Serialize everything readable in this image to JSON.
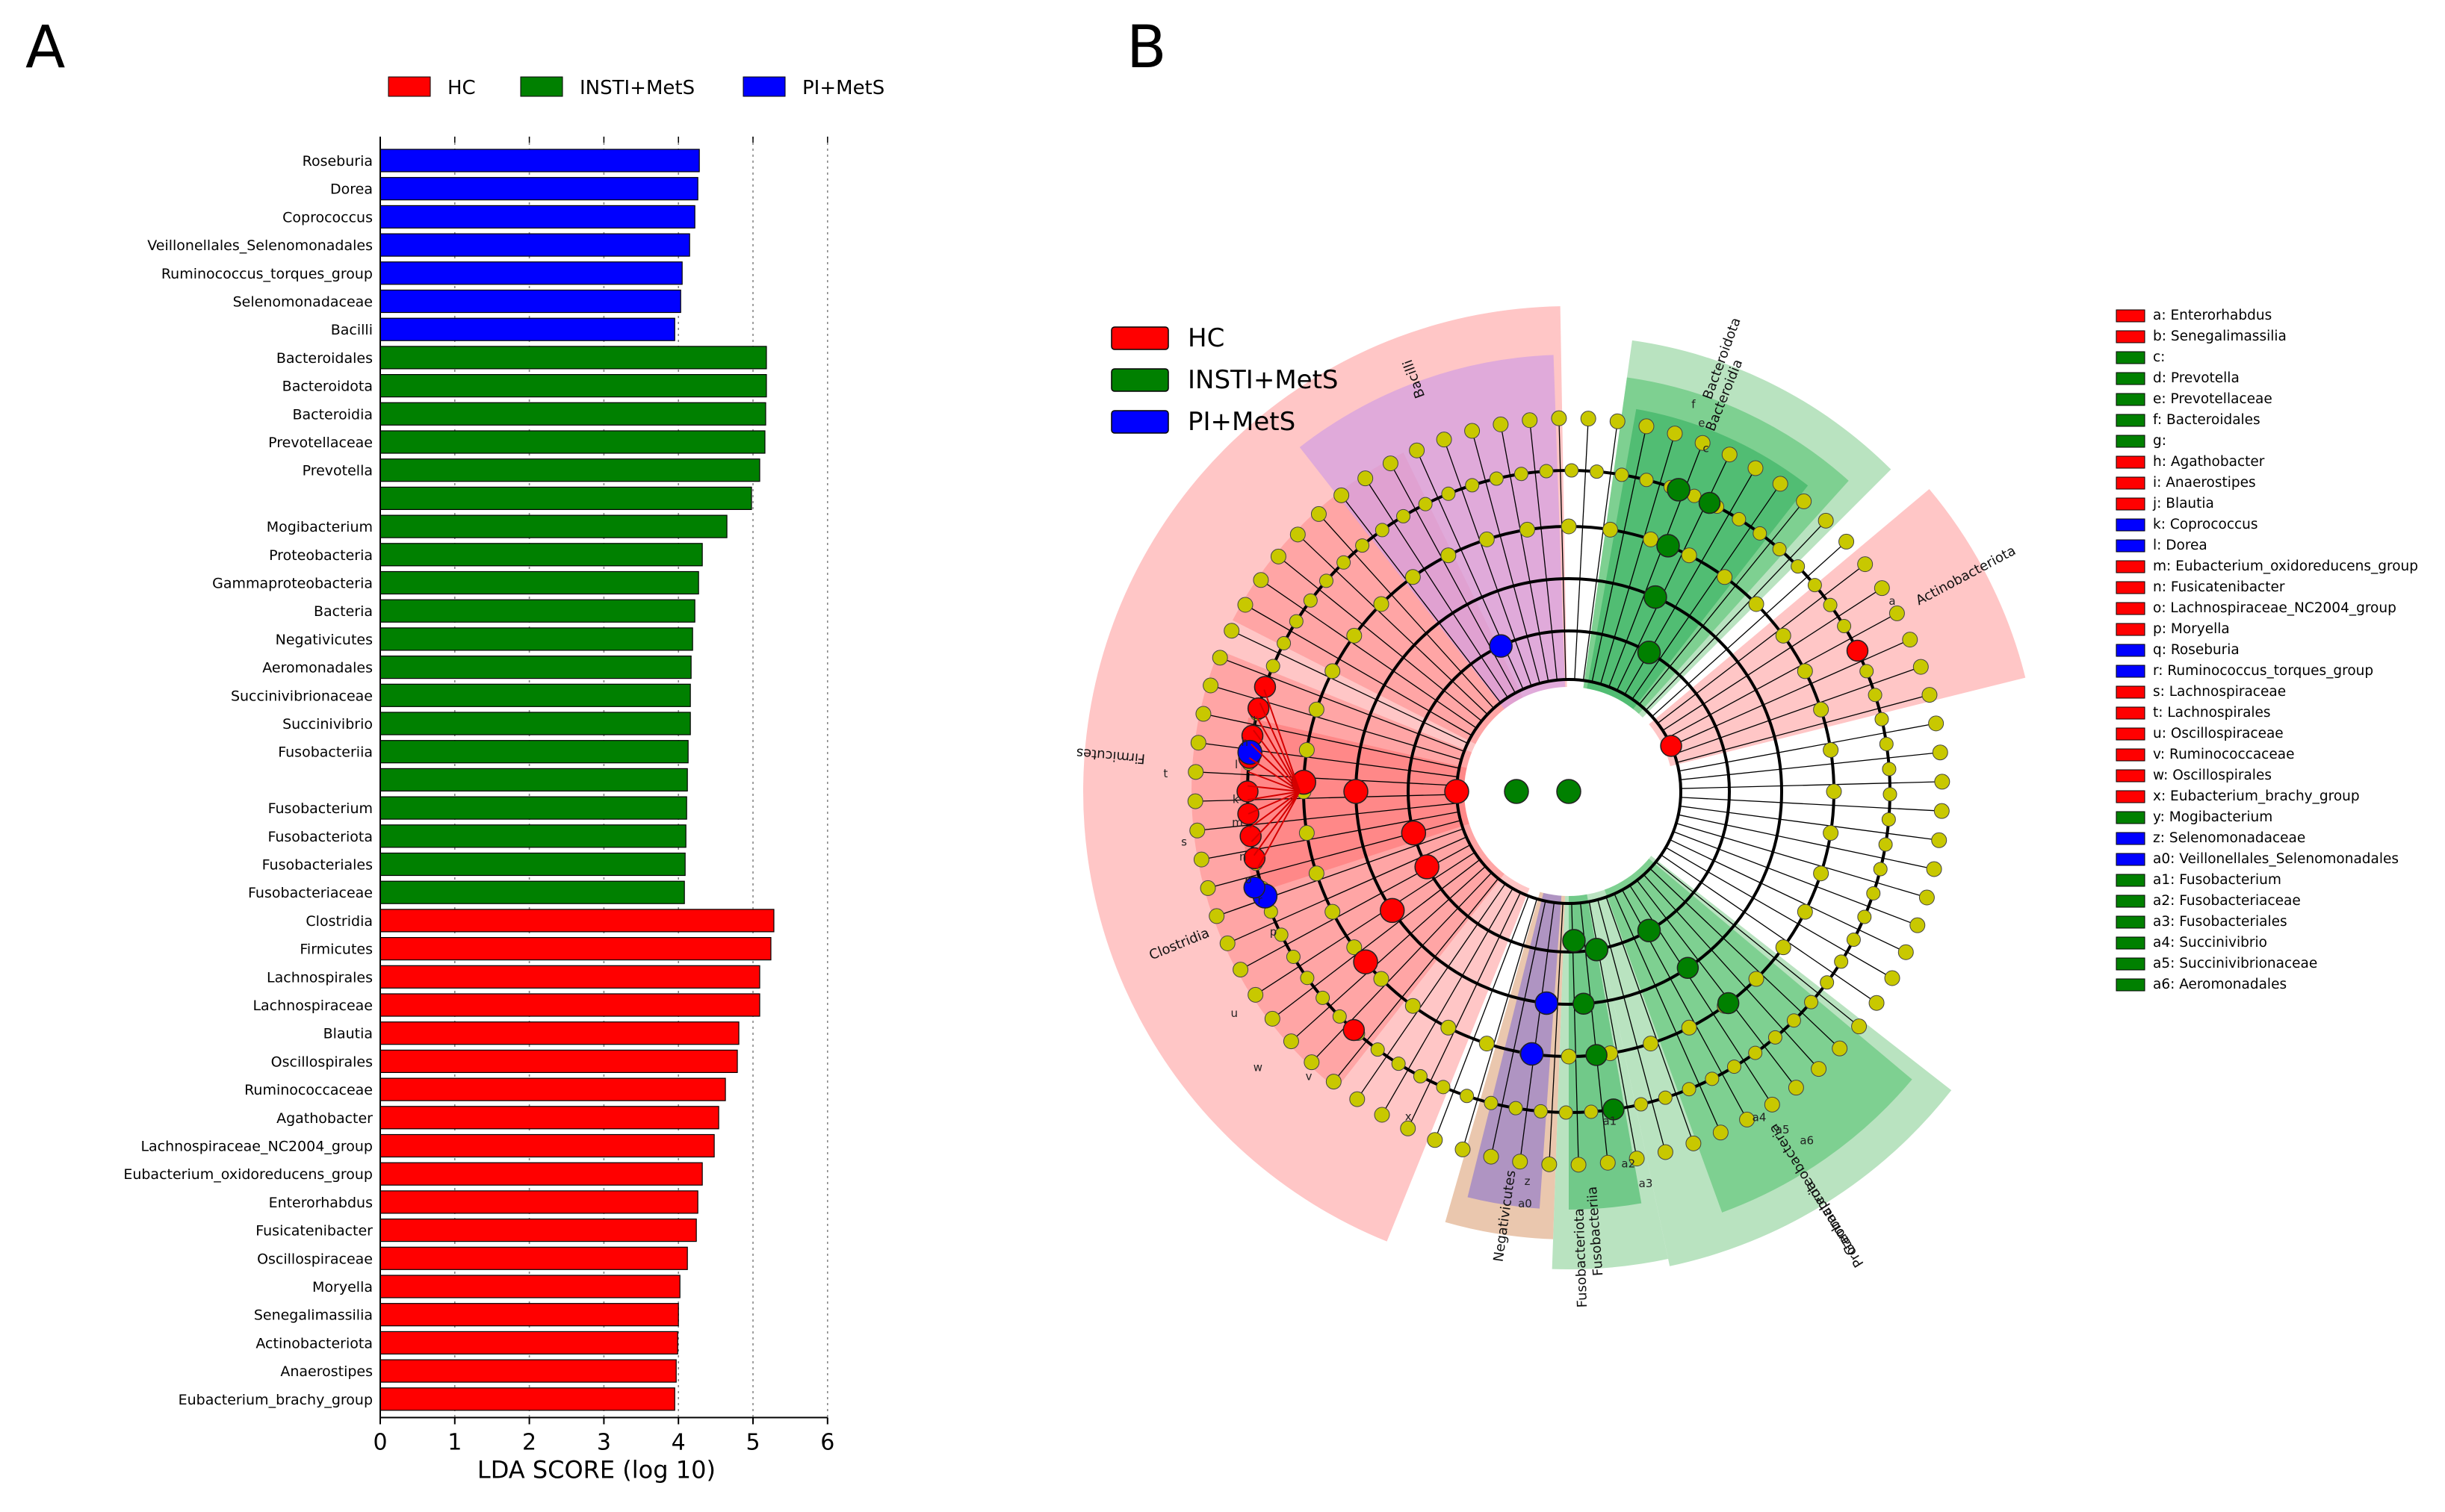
{
  "panels": [
    {
      "label": "A"
    },
    {
      "label": "B"
    }
  ],
  "colors": {
    "HC": "#ff0000",
    "INSTI+MetS": "#008000",
    "PI+MetS": "#0000ff",
    "node_neutral": "#c8c800"
  },
  "chart_data": [
    {
      "type": "bar",
      "orientation": "horizontal",
      "title": "",
      "xlabel": "LDA SCORE (log 10)",
      "ylabel": "",
      "xlim": [
        0,
        6
      ],
      "xticks": [
        0,
        1,
        2,
        3,
        4,
        5,
        6
      ],
      "grid": "vertical dotted",
      "legend": {
        "position": "top",
        "entries": [
          "HC",
          "INSTI+MetS",
          "PI+MetS"
        ]
      },
      "bars": [
        {
          "name": "Roseburia",
          "value": 4.28,
          "group": "PI+MetS"
        },
        {
          "name": "Dorea",
          "value": 4.26,
          "group": "PI+MetS"
        },
        {
          "name": "Coprococcus",
          "value": 4.22,
          "group": "PI+MetS"
        },
        {
          "name": "Veillonellales_Selenomonadales",
          "value": 4.15,
          "group": "PI+MetS"
        },
        {
          "name": "Ruminococcus_torques_group",
          "value": 4.05,
          "group": "PI+MetS"
        },
        {
          "name": "Selenomonadaceae",
          "value": 4.03,
          "group": "PI+MetS"
        },
        {
          "name": "Bacilli",
          "value": 3.95,
          "group": "PI+MetS"
        },
        {
          "name": "Bacteroidales",
          "value": 5.18,
          "group": "INSTI+MetS"
        },
        {
          "name": "Bacteroidota",
          "value": 5.18,
          "group": "INSTI+MetS"
        },
        {
          "name": "Bacteroidia",
          "value": 5.17,
          "group": "INSTI+MetS"
        },
        {
          "name": "Prevotellaceae",
          "value": 5.16,
          "group": "INSTI+MetS"
        },
        {
          "name": "Prevotella",
          "value": 5.09,
          "group": "INSTI+MetS"
        },
        {
          "name": "",
          "value": 4.98,
          "group": "INSTI+MetS"
        },
        {
          "name": "Mogibacterium",
          "value": 4.65,
          "group": "INSTI+MetS"
        },
        {
          "name": "Proteobacteria",
          "value": 4.32,
          "group": "INSTI+MetS"
        },
        {
          "name": "Gammaproteobacteria",
          "value": 4.27,
          "group": "INSTI+MetS"
        },
        {
          "name": "Bacteria",
          "value": 4.22,
          "group": "INSTI+MetS"
        },
        {
          "name": "Negativicutes",
          "value": 4.19,
          "group": "INSTI+MetS"
        },
        {
          "name": "Aeromonadales",
          "value": 4.17,
          "group": "INSTI+MetS"
        },
        {
          "name": "Succinivibrionaceae",
          "value": 4.16,
          "group": "INSTI+MetS"
        },
        {
          "name": "Succinivibrio",
          "value": 4.16,
          "group": "INSTI+MetS"
        },
        {
          "name": "Fusobacteriia",
          "value": 4.13,
          "group": "INSTI+MetS"
        },
        {
          "name": "",
          "value": 4.12,
          "group": "INSTI+MetS"
        },
        {
          "name": "Fusobacterium",
          "value": 4.11,
          "group": "INSTI+MetS"
        },
        {
          "name": "Fusobacteriota",
          "value": 4.1,
          "group": "INSTI+MetS"
        },
        {
          "name": "Fusobacteriales",
          "value": 4.09,
          "group": "INSTI+MetS"
        },
        {
          "name": "Fusobacteriaceae",
          "value": 4.08,
          "group": "INSTI+MetS"
        },
        {
          "name": "Clostridia",
          "value": 5.28,
          "group": "HC"
        },
        {
          "name": "Firmicutes",
          "value": 5.24,
          "group": "HC"
        },
        {
          "name": "Lachnospirales",
          "value": 5.09,
          "group": "HC"
        },
        {
          "name": "Lachnospiraceae",
          "value": 5.09,
          "group": "HC"
        },
        {
          "name": "Blautia",
          "value": 4.81,
          "group": "HC"
        },
        {
          "name": "Oscillospirales",
          "value": 4.79,
          "group": "HC"
        },
        {
          "name": "Ruminococcaceae",
          "value": 4.63,
          "group": "HC"
        },
        {
          "name": "Agathobacter",
          "value": 4.54,
          "group": "HC"
        },
        {
          "name": "Lachnospiraceae_NC2004_group",
          "value": 4.48,
          "group": "HC"
        },
        {
          "name": "Eubacterium_oxidoreducens_group",
          "value": 4.32,
          "group": "HC"
        },
        {
          "name": "Enterorhabdus",
          "value": 4.26,
          "group": "HC"
        },
        {
          "name": "Fusicatenibacter",
          "value": 4.24,
          "group": "HC"
        },
        {
          "name": "Oscillospiraceae",
          "value": 4.12,
          "group": "HC"
        },
        {
          "name": "Moryella",
          "value": 4.02,
          "group": "HC"
        },
        {
          "name": "Senegalimassilia",
          "value": 4.0,
          "group": "HC"
        },
        {
          "name": "Actinobacteriota",
          "value": 3.99,
          "group": "HC"
        },
        {
          "name": "Anaerostipes",
          "value": 3.97,
          "group": "HC"
        },
        {
          "name": "Eubacterium_brachy_group",
          "value": 3.95,
          "group": "HC"
        }
      ]
    },
    {
      "type": "cladogram",
      "legend": {
        "position": "top-left",
        "entries": [
          "HC",
          "INSTI+MetS",
          "PI+MetS"
        ]
      },
      "sector_labels": [
        "Bacilli",
        "Bacteroidota",
        "Bacteroidia",
        "Actinobacteriota",
        "Firmicutes",
        "Clostridia",
        "Negativicutes",
        "Fusobacteriia",
        "Fusobacteriota",
        "Gammaproteobacteria",
        "Proteobacteria"
      ],
      "key": [
        {
          "code": "a",
          "name": "Enterorhabdus",
          "group": "HC"
        },
        {
          "code": "b",
          "name": "Senegalimassilia",
          "group": "HC"
        },
        {
          "code": "c",
          "name": "",
          "group": "INSTI+MetS"
        },
        {
          "code": "d",
          "name": "Prevotella",
          "group": "INSTI+MetS"
        },
        {
          "code": "e",
          "name": "Prevotellaceae",
          "group": "INSTI+MetS"
        },
        {
          "code": "f",
          "name": "Bacteroidales",
          "group": "INSTI+MetS"
        },
        {
          "code": "g",
          "name": "",
          "group": "INSTI+MetS"
        },
        {
          "code": "h",
          "name": "Agathobacter",
          "group": "HC"
        },
        {
          "code": "i",
          "name": "Anaerostipes",
          "group": "HC"
        },
        {
          "code": "j",
          "name": "Blautia",
          "group": "HC"
        },
        {
          "code": "k",
          "name": "Coprococcus",
          "group": "PI+MetS"
        },
        {
          "code": "l",
          "name": "Dorea",
          "group": "PI+MetS"
        },
        {
          "code": "m",
          "name": "Eubacterium_oxidoreducens_group",
          "group": "HC"
        },
        {
          "code": "n",
          "name": "Fusicatenibacter",
          "group": "HC"
        },
        {
          "code": "o",
          "name": "Lachnospiraceae_NC2004_group",
          "group": "HC"
        },
        {
          "code": "p",
          "name": "Moryella",
          "group": "HC"
        },
        {
          "code": "q",
          "name": "Roseburia",
          "group": "PI+MetS"
        },
        {
          "code": "r",
          "name": "Ruminococcus_torques_group",
          "group": "PI+MetS"
        },
        {
          "code": "s",
          "name": "Lachnospiraceae",
          "group": "HC"
        },
        {
          "code": "t",
          "name": "Lachnospirales",
          "group": "HC"
        },
        {
          "code": "u",
          "name": "Oscillospiraceae",
          "group": "HC"
        },
        {
          "code": "v",
          "name": "Ruminococcaceae",
          "group": "HC"
        },
        {
          "code": "w",
          "name": "Oscillospirales",
          "group": "HC"
        },
        {
          "code": "x",
          "name": "Eubacterium_brachy_group",
          "group": "HC"
        },
        {
          "code": "y",
          "name": "Mogibacterium",
          "group": "INSTI+MetS"
        },
        {
          "code": "z",
          "name": "Selenomonadaceae",
          "group": "PI+MetS"
        },
        {
          "code": "a0",
          "name": "Veillonellales_Selenomonadales",
          "group": "PI+MetS"
        },
        {
          "code": "a1",
          "name": "Fusobacterium",
          "group": "INSTI+MetS"
        },
        {
          "code": "a2",
          "name": "Fusobacteriaceae",
          "group": "INSTI+MetS"
        },
        {
          "code": "a3",
          "name": "Fusobacteriales",
          "group": "INSTI+MetS"
        },
        {
          "code": "a4",
          "name": "Succinivibrio",
          "group": "INSTI+MetS"
        },
        {
          "code": "a5",
          "name": "Succinivibrionaceae",
          "group": "INSTI+MetS"
        },
        {
          "code": "a6",
          "name": "Aeromonadales",
          "group": "INSTI+MetS"
        }
      ]
    }
  ]
}
